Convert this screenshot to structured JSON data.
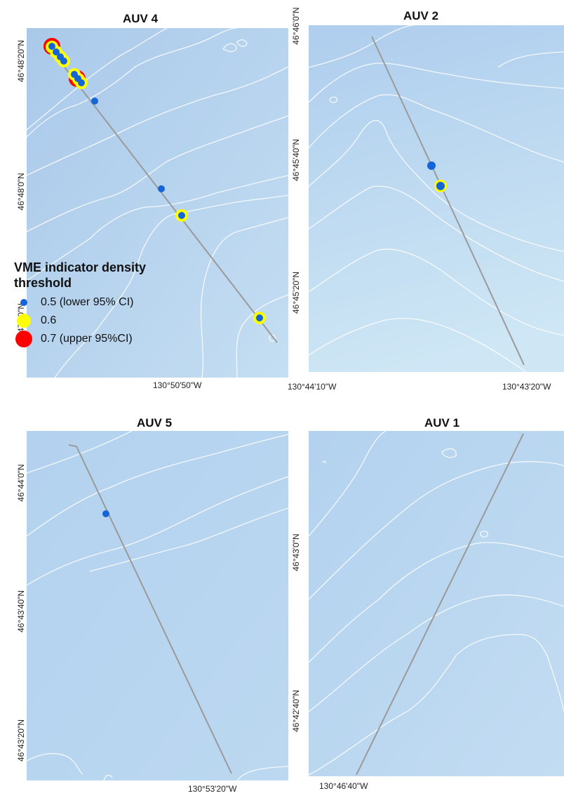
{
  "colors": {
    "sea": "#bcd8f0",
    "contour": "#ffffff",
    "track": "#9a9a9a",
    "threshold_05": "#1565d8",
    "threshold_06": "#ffff00",
    "threshold_07": "#ff0000"
  },
  "panels": {
    "auv4": {
      "title": "AUV 4",
      "lat_ticks": [
        "46°48'20\"N",
        "46°48'0\"N",
        "46°47'40\"N"
      ],
      "lon_ticks": [
        "130°50'50\"W"
      ]
    },
    "auv2": {
      "title": "AUV 2",
      "lat_ticks": [
        "46°46'0\"N",
        "46°45'40\"N",
        "46°45'20\"N"
      ],
      "lon_ticks": [
        "130°44'10\"W",
        "130°43'20\"W"
      ]
    },
    "auv5": {
      "title": "AUV 5",
      "lat_ticks": [
        "46°44'0\"N",
        "46°43'40\"N",
        "46°43'20\"N"
      ],
      "lon_ticks": [
        "130°53'20\"W"
      ]
    },
    "auv1": {
      "title": "AUV 1",
      "lat_ticks": [
        "46°43'0\"N",
        "46°42'40\"N"
      ],
      "lon_ticks": [
        "130°46'40\"W"
      ]
    }
  },
  "legend": {
    "title_line1": "VME indicator density",
    "title_line2": "threshold",
    "items": [
      {
        "label": "0.5 (lower 95% CI)",
        "symbol": "blue-dot"
      },
      {
        "label": "0.6",
        "symbol": "yellow-circle"
      },
      {
        "label": "0.7 (upper 95%CI)",
        "symbol": "red-circle"
      }
    ]
  }
}
